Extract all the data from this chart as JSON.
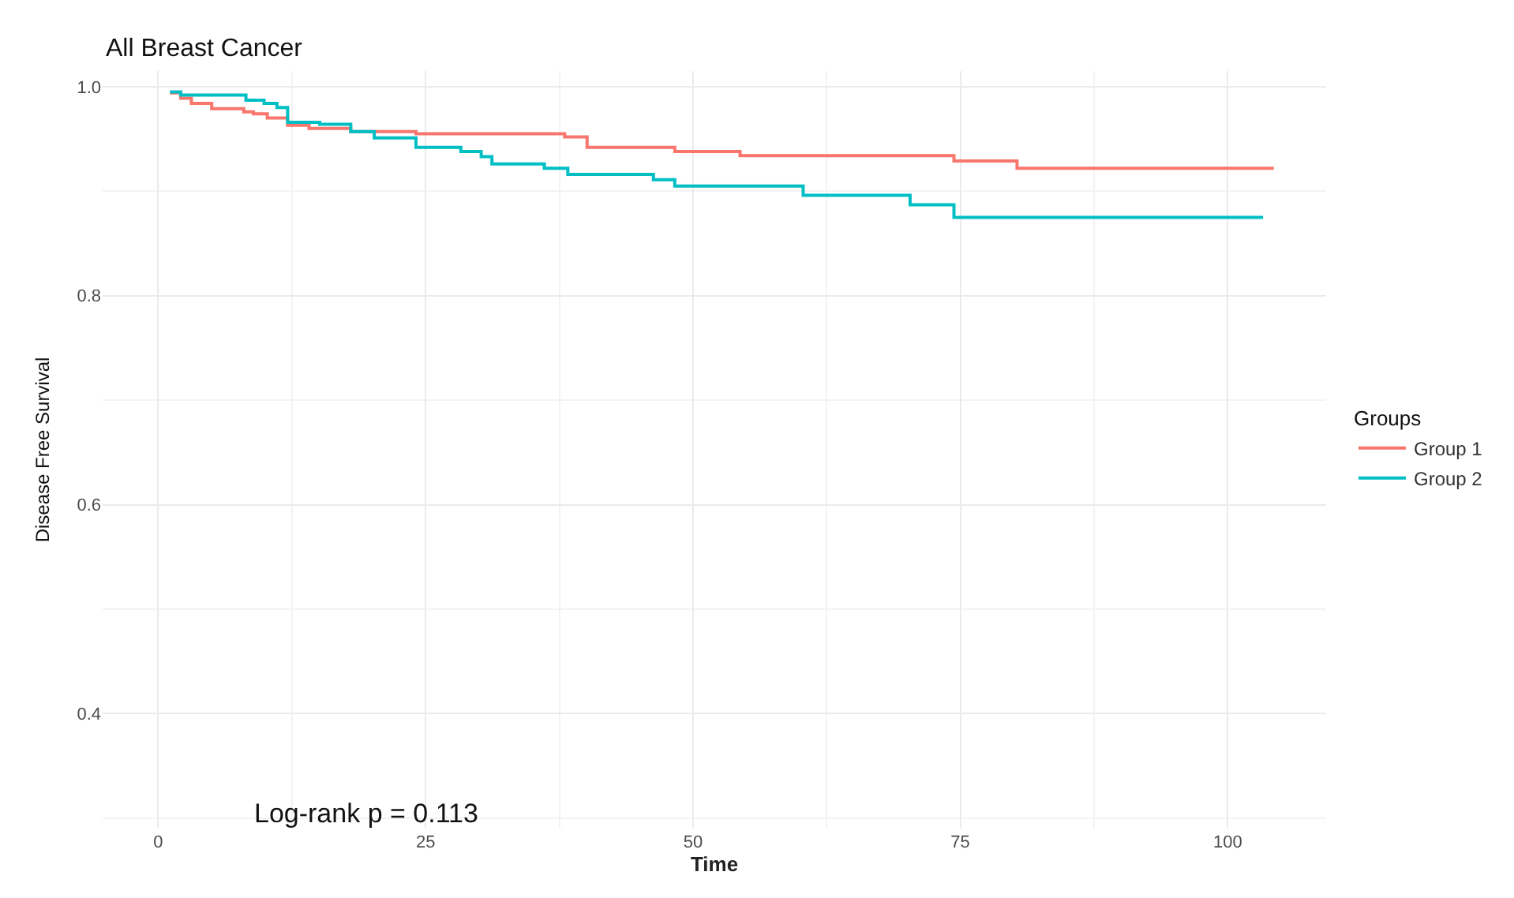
{
  "chart_data": {
    "type": "step",
    "title": "All Breast Cancer",
    "xlabel": "Time",
    "ylabel": "Disease Free Survival",
    "legend_title": "Groups",
    "legend": "right",
    "grid": true,
    "xlim": [
      -5.2,
      109.2
    ],
    "xticks": [
      0,
      25,
      50,
      75,
      100
    ],
    "ylim": [
      0.29,
      1.015
    ],
    "yticks": [
      0.4,
      0.6,
      0.8,
      {
        "value": 1.0,
        "label": "1.0"
      }
    ],
    "annotations": [
      "Log-rank p = 0.113"
    ],
    "series": [
      {
        "name": "Group 1",
        "color": "#f8766d",
        "x": [
          1.1,
          2.1,
          3.1,
          5.0,
          8.0,
          8.9,
          10.2,
          12.1,
          14.1,
          18.0,
          24.1,
          38.0,
          40.1,
          48.3,
          54.4,
          74.4,
          80.3,
          104.3
        ],
        "values": [
          0.994,
          0.989,
          0.984,
          0.979,
          0.976,
          0.974,
          0.97,
          0.963,
          0.96,
          0.957,
          0.955,
          0.952,
          0.942,
          0.938,
          0.934,
          0.929,
          0.922,
          0.922
        ]
      },
      {
        "name": "Group 2",
        "color": "#00bfc4",
        "x": [
          1.1,
          2.1,
          8.2,
          9.9,
          11.1,
          12.1,
          15.1,
          18.0,
          20.2,
          24.1,
          28.3,
          30.2,
          31.2,
          36.1,
          38.3,
          46.3,
          48.3,
          60.3,
          70.3,
          74.4,
          103.3
        ],
        "values": [
          0.995,
          0.992,
          0.987,
          0.984,
          0.98,
          0.966,
          0.964,
          0.957,
          0.951,
          0.942,
          0.938,
          0.933,
          0.926,
          0.922,
          0.916,
          0.911,
          0.905,
          0.896,
          0.887,
          0.875,
          0.875
        ]
      }
    ]
  }
}
